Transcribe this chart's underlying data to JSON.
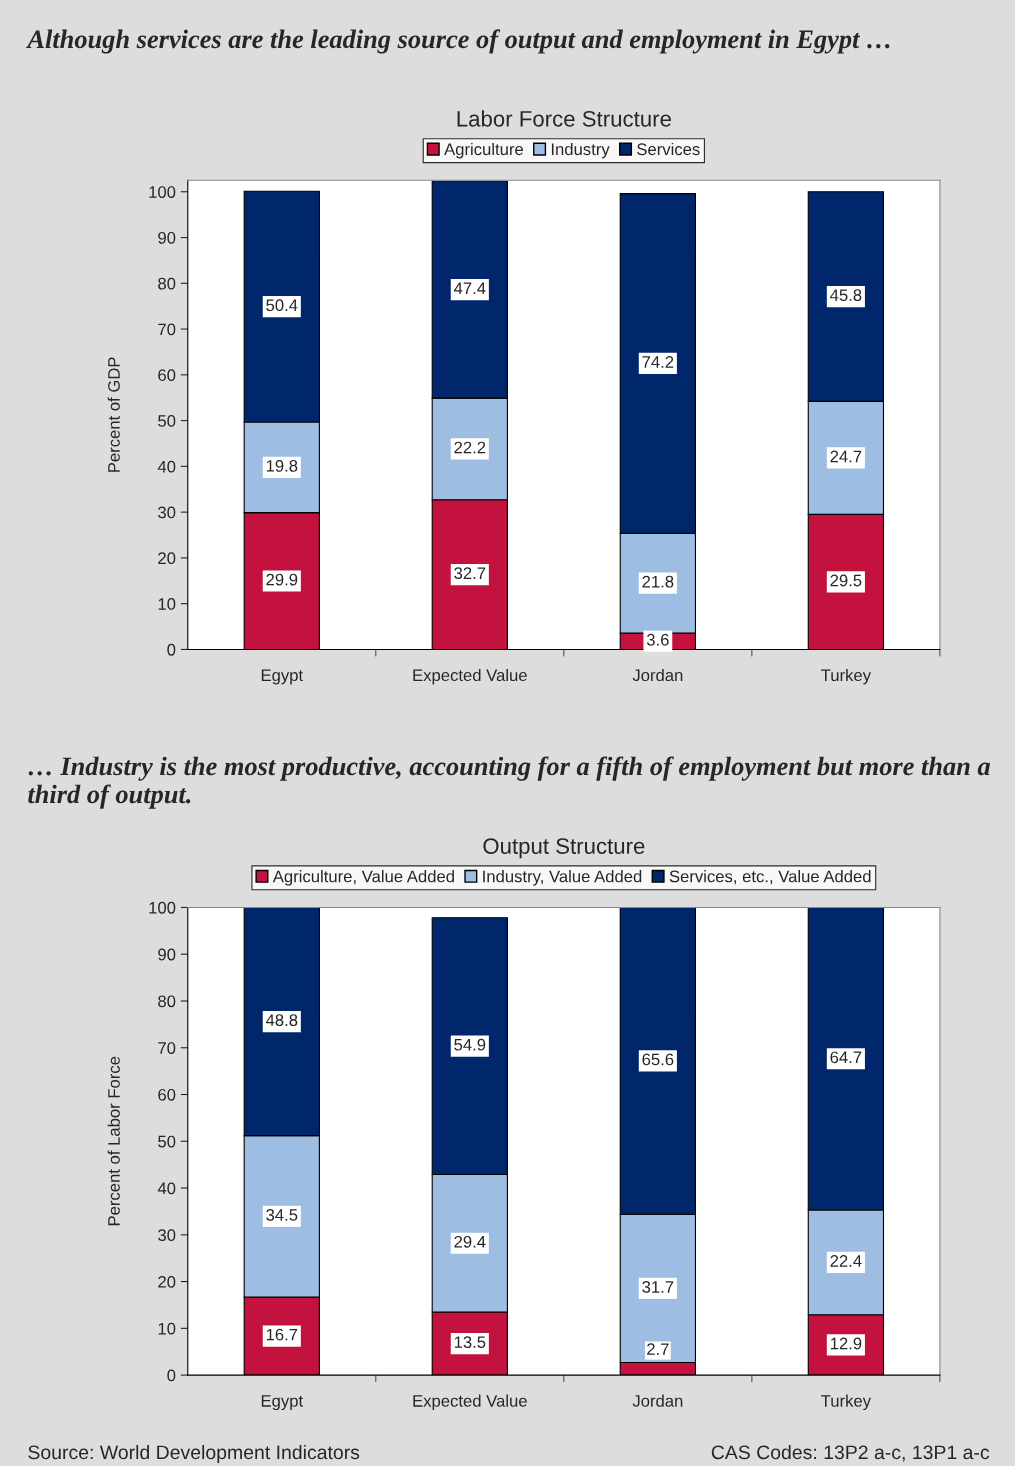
{
  "chart_data": [
    {
      "type": "bar",
      "stacked": true,
      "subtitle": "Although services are the leading source of output and employment in Egypt …",
      "title": "Labor Force Structure",
      "ylabel": "Percent of GDP",
      "categories": [
        "Egypt",
        "Expected Value",
        "Jordan",
        "Turkey"
      ],
      "series": [
        {
          "name": "Agriculture",
          "color": "#c4123e",
          "values": [
            29.9,
            32.7,
            3.6,
            29.5
          ]
        },
        {
          "name": "Industry",
          "color": "#9dbde3",
          "values": [
            19.8,
            22.2,
            21.8,
            24.7
          ]
        },
        {
          "name": "Services",
          "color": "#00266b",
          "values": [
            50.4,
            47.4,
            74.2,
            45.8
          ]
        }
      ],
      "ylim": [
        0,
        102.5
      ],
      "yticks": [
        0,
        10,
        20,
        30,
        40,
        50,
        60,
        70,
        80,
        90,
        100
      ],
      "data_labels": true,
      "legend": "top",
      "grid": false
    },
    {
      "type": "bar",
      "stacked": true,
      "subtitle": "… Industry is the most productive, accounting for a fifth of employment but more than a third of output.",
      "title": "Output Structure",
      "ylabel": "Percent of Labor Force",
      "categories": [
        "Egypt",
        "Expected Value",
        "Jordan",
        "Turkey"
      ],
      "series": [
        {
          "name": "Agriculture, Value Added",
          "color": "#c4123e",
          "values": [
            16.7,
            13.5,
            2.7,
            12.9
          ]
        },
        {
          "name": "Industry, Value Added",
          "color": "#9dbde3",
          "values": [
            34.5,
            29.4,
            31.7,
            22.4
          ]
        },
        {
          "name": "Services, etc., Value Added",
          "color": "#00266b",
          "values": [
            48.8,
            54.9,
            65.6,
            64.7
          ]
        }
      ],
      "ylim": [
        0,
        100
      ],
      "yticks": [
        0,
        10,
        20,
        30,
        40,
        50,
        60,
        70,
        80,
        90,
        100
      ],
      "data_labels": true,
      "legend": "top",
      "grid": false,
      "annotations": [
        "Source: World Development Indicators",
        "CAS Codes: 13P2 a-c, 13P1 a-c"
      ]
    }
  ]
}
